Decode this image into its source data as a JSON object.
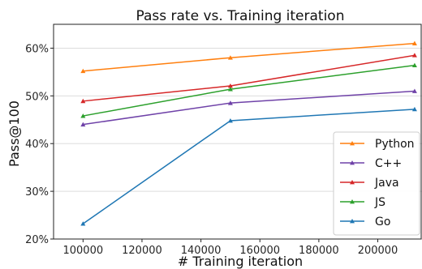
{
  "chart_data": {
    "type": "line",
    "title": "Pass rate vs. Training iteration",
    "xlabel": "# Training iteration",
    "ylabel": "Pass@100",
    "x": [
      100000,
      150000,
      212500
    ],
    "xlim": [
      90000,
      215000
    ],
    "ylim": [
      20,
      65
    ],
    "xticks": [
      100000,
      120000,
      140000,
      160000,
      180000,
      200000
    ],
    "xtick_labels": [
      "100000",
      "120000",
      "140000",
      "160000",
      "180000",
      "200000"
    ],
    "yticks": [
      20,
      30,
      40,
      50,
      60
    ],
    "ytick_labels": [
      "20%",
      "30%",
      "40%",
      "50%",
      "60%"
    ],
    "grid": true,
    "legend_position": "lower-right",
    "marker": "triangle",
    "series": [
      {
        "name": "Python",
        "color": "#ff7f0e",
        "values": [
          55.2,
          58.0,
          61.0
        ]
      },
      {
        "name": "C++",
        "color": "#6f42a8",
        "values": [
          44.0,
          48.5,
          51.0
        ]
      },
      {
        "name": "Java",
        "color": "#d62728",
        "values": [
          48.9,
          52.1,
          58.5
        ]
      },
      {
        "name": "JS",
        "color": "#2ca02c",
        "values": [
          45.8,
          51.4,
          56.4
        ]
      },
      {
        "name": "Go",
        "color": "#1f77b4",
        "values": [
          23.2,
          44.8,
          47.2
        ]
      }
    ]
  }
}
